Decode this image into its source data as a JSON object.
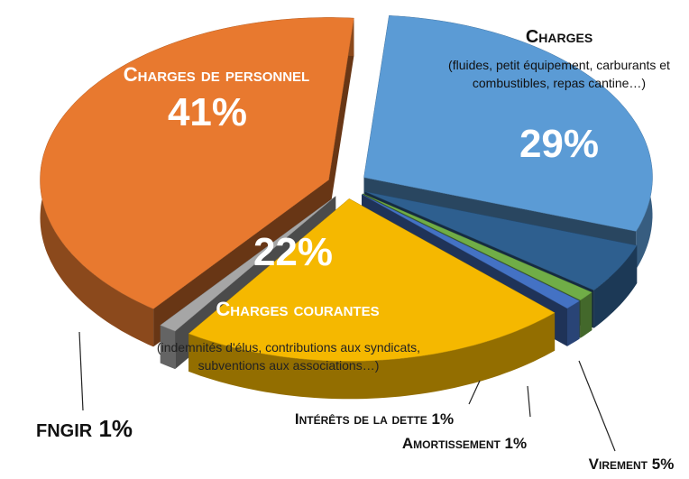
{
  "chart_data": {
    "type": "pie",
    "categories": [
      "Charges",
      "Virement",
      "Amortissement",
      "Intérêts de la dette",
      "Charges courantes",
      "FNGIR",
      "Charges de personnel"
    ],
    "values": [
      29,
      5,
      1,
      1,
      22,
      1,
      41
    ],
    "value_labels": [
      "29%",
      "5%",
      "1%",
      "1%",
      "22%",
      "1%",
      "41%"
    ],
    "descriptions": [
      "(fluides, petit équipement, carburants et combustibles, repas cantine…)",
      null,
      null,
      null,
      "(indemnités d'élus, contributions aux syndicats, subventions aux associations…)",
      null,
      null
    ],
    "colors": [
      "#5b9bd5",
      "#2e5f8f",
      "#70ad47",
      "#4472c4",
      "#f5b800",
      "#a6a6a6",
      "#e8792f"
    ]
  }
}
